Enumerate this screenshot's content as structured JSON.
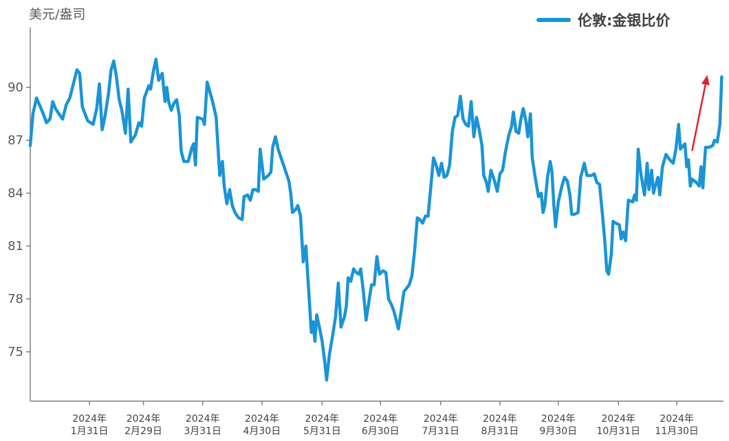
{
  "chart_data": {
    "type": "line",
    "unit_label": "美元/盎司",
    "series": [
      {
        "name": "伦敦:金银比价",
        "color": "#1a94d6",
        "points": [
          [
            0,
            86.7
          ],
          [
            3,
            88.5
          ],
          [
            7,
            89.4
          ],
          [
            12,
            88.8
          ],
          [
            16,
            88.3
          ],
          [
            18,
            88.0
          ],
          [
            22,
            88.2
          ],
          [
            25,
            89.2
          ],
          [
            28,
            88.8
          ],
          [
            32,
            88.5
          ],
          [
            36,
            88.2
          ],
          [
            40,
            89.0
          ],
          [
            44,
            89.4
          ],
          [
            48,
            90.2
          ],
          [
            52,
            91.0
          ],
          [
            55,
            90.8
          ],
          [
            58,
            88.9
          ],
          [
            61,
            88.5
          ],
          [
            64,
            88.1
          ],
          [
            70,
            87.9
          ],
          [
            74,
            88.8
          ],
          [
            77,
            90.2
          ],
          [
            80,
            87.6
          ],
          [
            83,
            88.3
          ],
          [
            87,
            89.6
          ],
          [
            90,
            91.0
          ],
          [
            93,
            91.5
          ],
          [
            96,
            90.6
          ],
          [
            99,
            89.3
          ],
          [
            102,
            88.7
          ],
          [
            106,
            87.4
          ],
          [
            109,
            89.9
          ],
          [
            112,
            86.9
          ],
          [
            117,
            87.3
          ],
          [
            121,
            88.0
          ],
          [
            124,
            87.8
          ],
          [
            127,
            89.4
          ],
          [
            132,
            90.1
          ],
          [
            134,
            89.9
          ],
          [
            137,
            90.9
          ],
          [
            140,
            91.6
          ],
          [
            143,
            90.4
          ],
          [
            147,
            90.8
          ],
          [
            150,
            89.2
          ],
          [
            152,
            90.0
          ],
          [
            154,
            89.2
          ],
          [
            157,
            88.7
          ],
          [
            160,
            89.1
          ],
          [
            163,
            89.3
          ],
          [
            166,
            88.4
          ],
          [
            168,
            86.4
          ],
          [
            171,
            85.8
          ],
          [
            176,
            85.8
          ],
          [
            180,
            86.6
          ],
          [
            182,
            86.8
          ],
          [
            184,
            85.6
          ],
          [
            186,
            88.3
          ],
          [
            192,
            88.2
          ],
          [
            194,
            87.9
          ],
          [
            197,
            90.3
          ],
          [
            203,
            89.2
          ],
          [
            207,
            88.3
          ],
          [
            211,
            85.0
          ],
          [
            214,
            85.8
          ],
          [
            216,
            84.4
          ],
          [
            219,
            83.4
          ],
          [
            222,
            84.2
          ],
          [
            225,
            83.3
          ],
          [
            228,
            82.9
          ],
          [
            232,
            82.6
          ],
          [
            236,
            82.5
          ],
          [
            238,
            83.8
          ],
          [
            242,
            83.9
          ],
          [
            245,
            83.6
          ],
          [
            248,
            84.2
          ],
          [
            251,
            84.2
          ],
          [
            254,
            84.1
          ],
          [
            256,
            86.5
          ],
          [
            260,
            84.8
          ],
          [
            265,
            85.0
          ],
          [
            268,
            85.2
          ],
          [
            270,
            86.6
          ],
          [
            273,
            87.2
          ],
          [
            276,
            86.5
          ],
          [
            280,
            85.9
          ],
          [
            284,
            85.3
          ],
          [
            288,
            84.7
          ],
          [
            290,
            84.0
          ],
          [
            292,
            82.9
          ],
          [
            296,
            83.1
          ],
          [
            298,
            83.3
          ],
          [
            301,
            82.7
          ],
          [
            304,
            80.1
          ],
          [
            307,
            81.0
          ],
          [
            310,
            78.5
          ],
          [
            313,
            76.1
          ],
          [
            315,
            76.7
          ],
          [
            317,
            75.6
          ],
          [
            319,
            77.1
          ],
          [
            322,
            76.4
          ],
          [
            325,
            75.6
          ],
          [
            328,
            74.4
          ],
          [
            330,
            73.4
          ],
          [
            333,
            74.8
          ],
          [
            337,
            76.0
          ],
          [
            340,
            77.0
          ],
          [
            343,
            78.9
          ],
          [
            346,
            76.4
          ],
          [
            350,
            77.0
          ],
          [
            352,
            77.6
          ],
          [
            354,
            79.2
          ],
          [
            357,
            79.0
          ],
          [
            360,
            79.7
          ],
          [
            363,
            79.5
          ],
          [
            366,
            79.4
          ],
          [
            368,
            79.7
          ],
          [
            371,
            78.4
          ],
          [
            374,
            76.8
          ],
          [
            377,
            77.8
          ],
          [
            380,
            78.8
          ],
          [
            383,
            78.8
          ],
          [
            386,
            80.4
          ],
          [
            389,
            79.4
          ],
          [
            393,
            79.6
          ],
          [
            396,
            79.5
          ],
          [
            399,
            78.0
          ],
          [
            402,
            77.7
          ],
          [
            405,
            77.3
          ],
          [
            408,
            76.7
          ],
          [
            410,
            76.3
          ],
          [
            413,
            77.3
          ],
          [
            416,
            78.4
          ],
          [
            419,
            78.6
          ],
          [
            422,
            78.8
          ],
          [
            425,
            79.3
          ],
          [
            428,
            80.7
          ],
          [
            431,
            82.6
          ],
          [
            434,
            82.5
          ],
          [
            437,
            82.3
          ],
          [
            440,
            82.7
          ],
          [
            443,
            82.7
          ],
          [
            446,
            84.3
          ],
          [
            449,
            86.0
          ],
          [
            452,
            85.6
          ],
          [
            455,
            85.0
          ],
          [
            458,
            85.7
          ],
          [
            461,
            84.9
          ],
          [
            464,
            85.0
          ],
          [
            467,
            85.6
          ],
          [
            470,
            87.5
          ],
          [
            473,
            88.3
          ],
          [
            476,
            88.4
          ],
          [
            479,
            89.5
          ],
          [
            482,
            88.2
          ],
          [
            485,
            87.9
          ],
          [
            488,
            87.8
          ],
          [
            491,
            89.2
          ],
          [
            494,
            87.2
          ],
          [
            497,
            88.3
          ],
          [
            500,
            87.6
          ],
          [
            503,
            86.7
          ],
          [
            505,
            85.0
          ],
          [
            508,
            84.6
          ],
          [
            510,
            84.1
          ],
          [
            513,
            85.3
          ],
          [
            517,
            84.7
          ],
          [
            520,
            84.1
          ],
          [
            523,
            85.1
          ],
          [
            526,
            85.3
          ],
          [
            529,
            86.3
          ],
          [
            533,
            87.3
          ],
          [
            536,
            87.8
          ],
          [
            538,
            88.6
          ],
          [
            541,
            87.5
          ],
          [
            544,
            87.4
          ],
          [
            546,
            88.1
          ],
          [
            549,
            88.8
          ],
          [
            552,
            88.1
          ],
          [
            554,
            87.2
          ],
          [
            557,
            88.5
          ],
          [
            559,
            86.0
          ],
          [
            562,
            85.0
          ],
          [
            566,
            83.8
          ],
          [
            569,
            84.0
          ],
          [
            571,
            82.9
          ],
          [
            573,
            83.3
          ],
          [
            576,
            84.9
          ],
          [
            579,
            85.8
          ],
          [
            581,
            85.2
          ],
          [
            583,
            83.4
          ],
          [
            585,
            82.1
          ],
          [
            588,
            83.5
          ],
          [
            592,
            84.4
          ],
          [
            595,
            84.9
          ],
          [
            598,
            84.7
          ],
          [
            601,
            83.9
          ],
          [
            603,
            82.8
          ],
          [
            606,
            82.8
          ],
          [
            610,
            82.9
          ],
          [
            613,
            84.9
          ],
          [
            617,
            85.7
          ],
          [
            620,
            85.0
          ],
          [
            625,
            85.0
          ],
          [
            628,
            85.1
          ],
          [
            631,
            84.6
          ],
          [
            634,
            84.5
          ],
          [
            637,
            82.9
          ],
          [
            640,
            81.2
          ],
          [
            642,
            79.6
          ],
          [
            644,
            79.4
          ],
          [
            647,
            80.5
          ],
          [
            649,
            82.4
          ],
          [
            652,
            82.3
          ],
          [
            656,
            82.2
          ],
          [
            658,
            81.4
          ],
          [
            660,
            81.8
          ],
          [
            663,
            81.3
          ],
          [
            666,
            83.6
          ],
          [
            671,
            83.5
          ],
          [
            673,
            83.9
          ],
          [
            675,
            83.6
          ],
          [
            677,
            86.5
          ],
          [
            680,
            85.1
          ],
          [
            684,
            83.9
          ],
          [
            687,
            85.7
          ],
          [
            689,
            84.2
          ],
          [
            692,
            85.3
          ],
          [
            694,
            84.0
          ],
          [
            696,
            84.4
          ],
          [
            699,
            84.9
          ],
          [
            701,
            83.9
          ],
          [
            704,
            85.5
          ],
          [
            708,
            86.2
          ],
          [
            712,
            85.9
          ],
          [
            716,
            85.7
          ],
          [
            719,
            86.5
          ],
          [
            722,
            87.9
          ],
          [
            724,
            86.5
          ],
          [
            729,
            86.8
          ],
          [
            731,
            85.5
          ],
          [
            733,
            85.9
          ],
          [
            735,
            84.4
          ],
          [
            737,
            84.8
          ],
          [
            742,
            84.6
          ],
          [
            745,
            84.4
          ],
          [
            747,
            85.5
          ],
          [
            749,
            84.3
          ],
          [
            752,
            86.6
          ],
          [
            756,
            86.6
          ],
          [
            760,
            86.7
          ],
          [
            762,
            87.0
          ],
          [
            765,
            86.9
          ],
          [
            768,
            87.9
          ],
          [
            770,
            90.6
          ]
        ]
      }
    ],
    "x_axis": {
      "ticks": [
        {
          "x": 66,
          "line1": "2024年",
          "line2": "1月31日"
        },
        {
          "x": 126,
          "line1": "2024年",
          "line2": "2月29日"
        },
        {
          "x": 192,
          "line1": "2024年",
          "line2": "3月31日"
        },
        {
          "x": 258,
          "line1": "2024年",
          "line2": "4月30日"
        },
        {
          "x": 325,
          "line1": "2024年",
          "line2": "5月31日"
        },
        {
          "x": 390,
          "line1": "2024年",
          "line2": "6月30日"
        },
        {
          "x": 457,
          "line1": "2024年",
          "line2": "7月31日"
        },
        {
          "x": 523,
          "line1": "2024年",
          "line2": "8月31日"
        },
        {
          "x": 588,
          "line1": "2024年",
          "line2": "9月30日"
        },
        {
          "x": 655,
          "line1": "2024年",
          "line2": "10月31日"
        },
        {
          "x": 720,
          "line1": "2024年",
          "line2": "11月30日"
        }
      ],
      "min": 0,
      "max": 772
    },
    "y_axis": {
      "ticks": [
        75,
        78,
        81,
        84,
        87,
        90
      ],
      "min": 72.2,
      "max": 93.4
    },
    "annotation": {
      "type": "arrow",
      "color": "#e0202a",
      "from": [
        737,
        86.4
      ],
      "to": [
        754,
        90.7
      ]
    },
    "grid": false,
    "legend_position": "top-right"
  }
}
